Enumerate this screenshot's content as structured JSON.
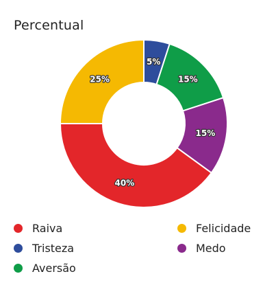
{
  "chart_data": {
    "type": "pie",
    "title": "Percentual",
    "categories": [
      "Tristeza",
      "Aversão",
      "Medo",
      "Raiva",
      "Felicidade"
    ],
    "values": [
      5,
      15,
      15,
      40,
      25
    ],
    "labels": [
      "5%",
      "15%",
      "15%",
      "40%",
      "25%"
    ],
    "colors": [
      "#2e4d9c",
      "#0f9d48",
      "#8a2a8c",
      "#e3262a",
      "#f5b902"
    ],
    "legend": {
      "placement": "bottom",
      "entries": [
        {
          "name": "Raiva",
          "color": "#e3262a"
        },
        {
          "name": "Felicidade",
          "color": "#f5b902"
        },
        {
          "name": "Tristeza",
          "color": "#2e4d9c"
        },
        {
          "name": "Medo",
          "color": "#8a2a8c"
        },
        {
          "name": "Aversão",
          "color": "#0f9d48"
        }
      ]
    }
  }
}
